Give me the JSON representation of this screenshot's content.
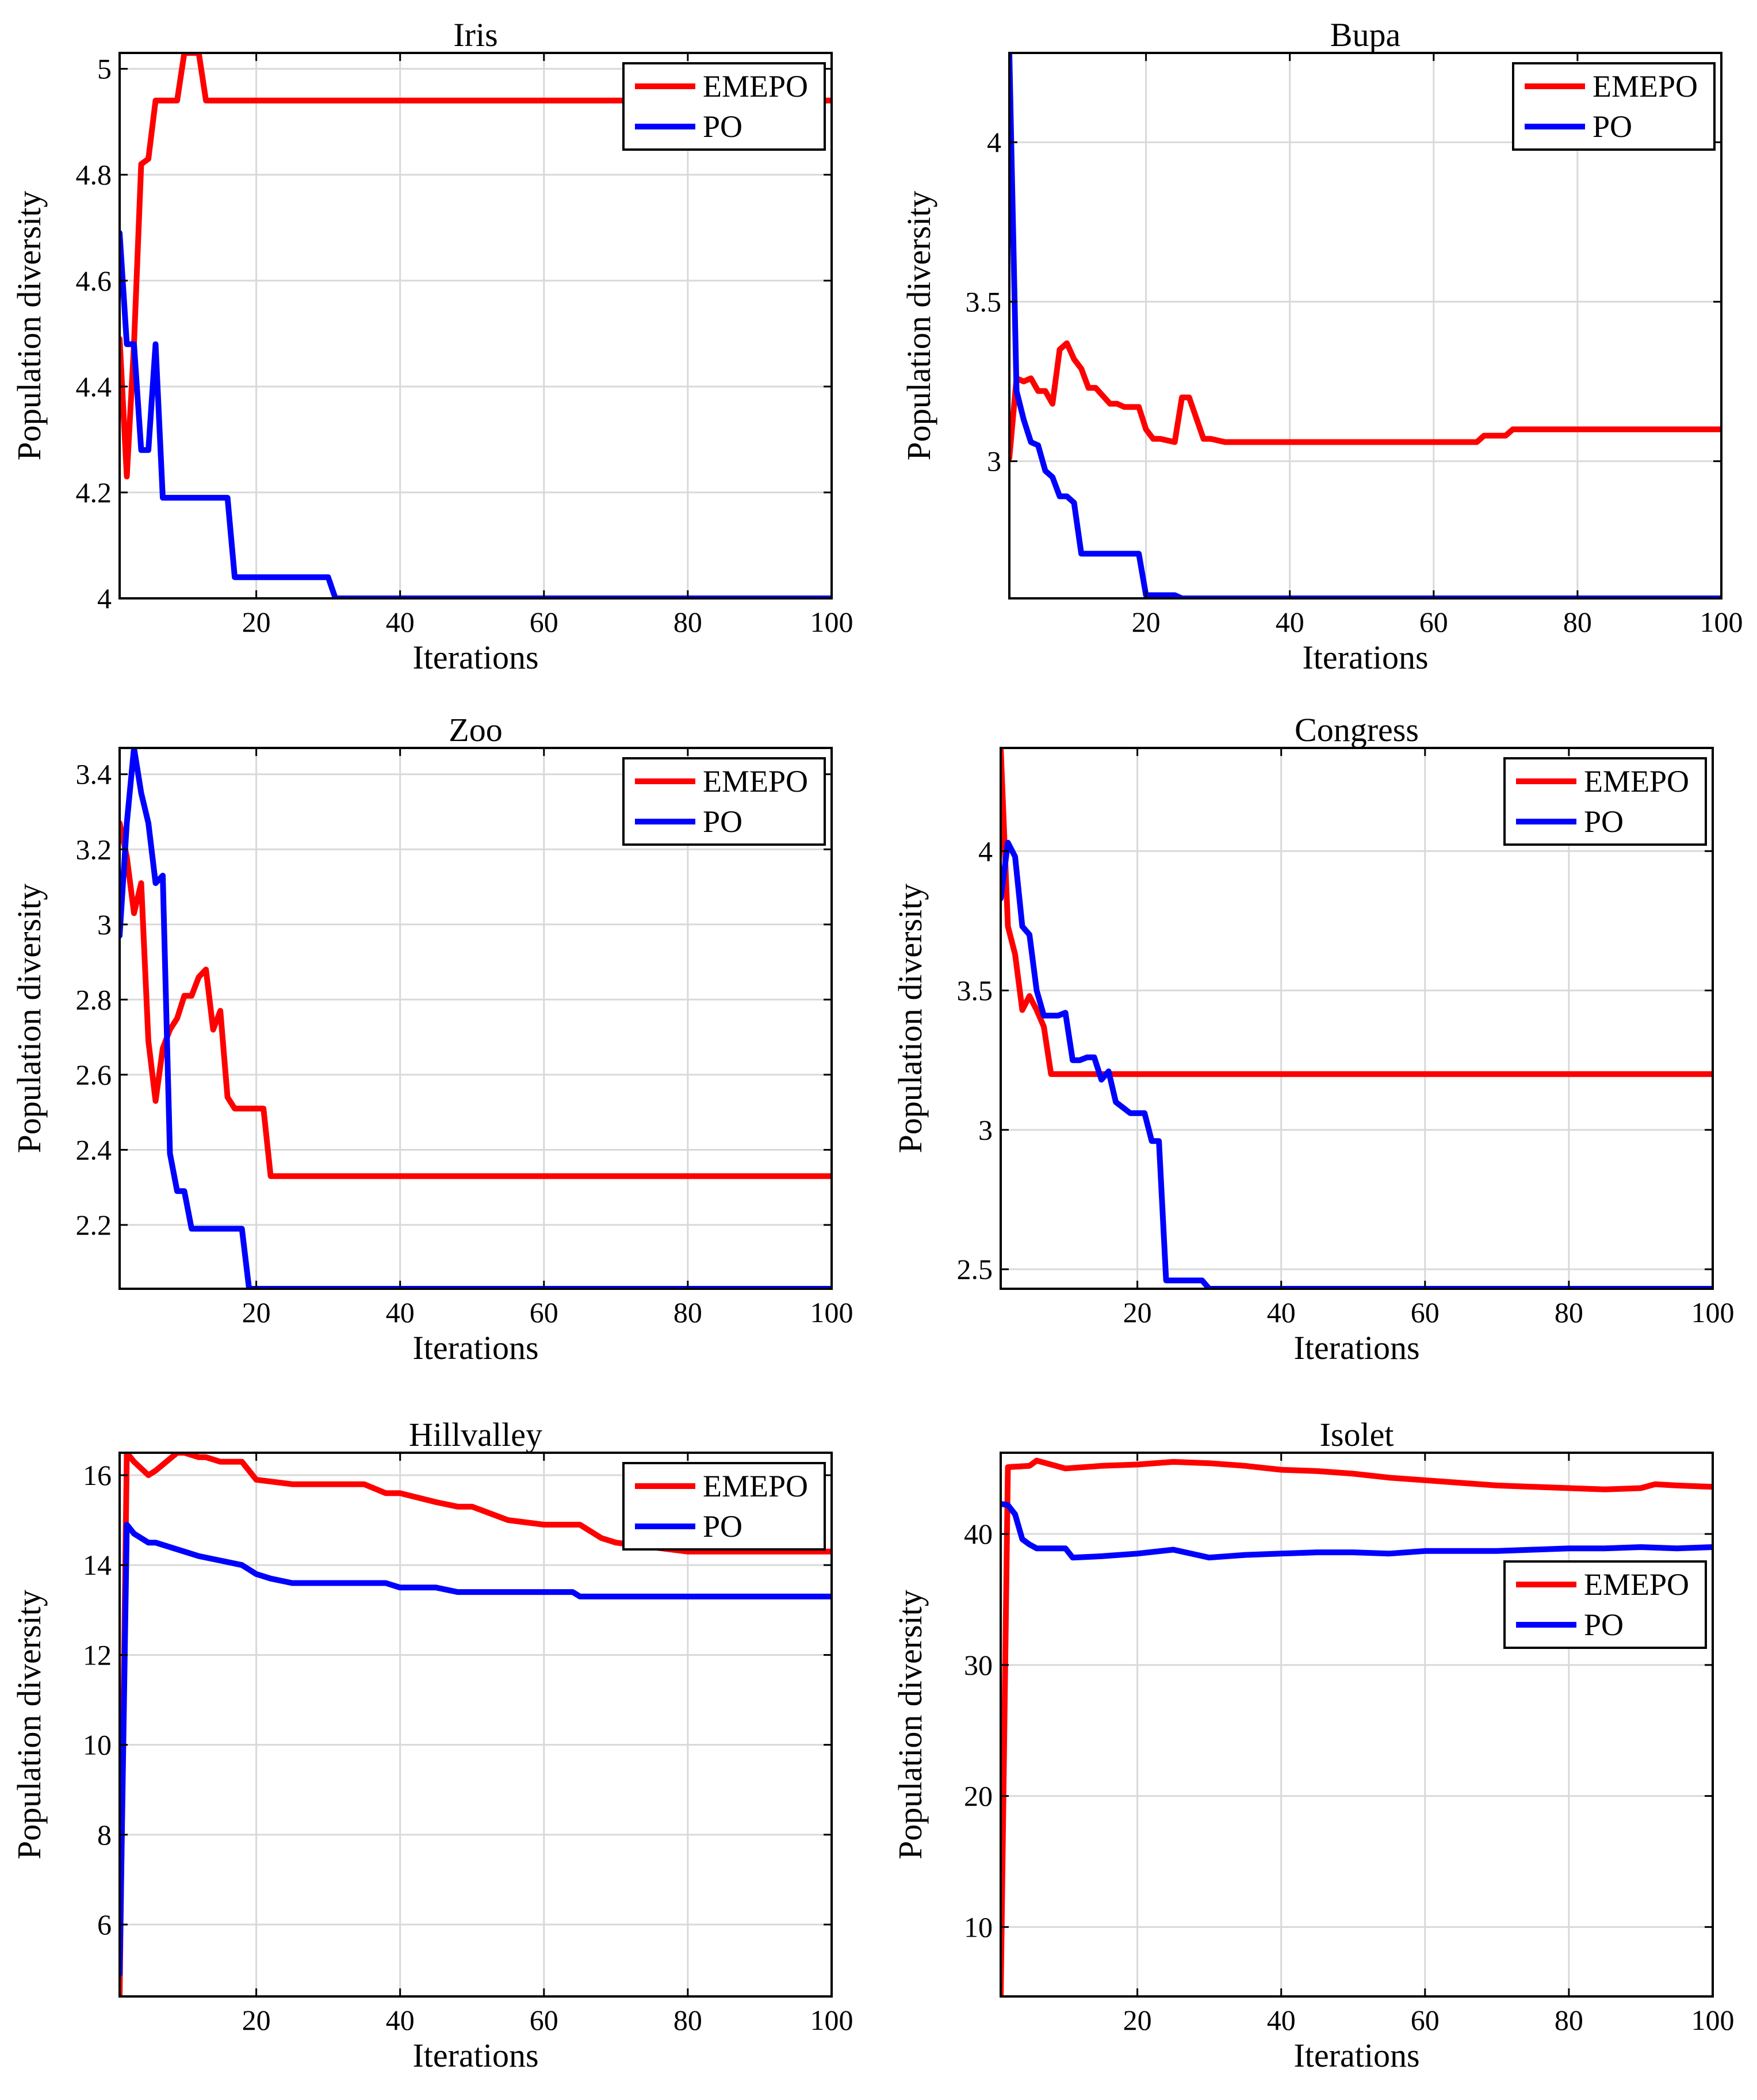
{
  "colors": {
    "EMEPO": "#ff0000",
    "PO": "#0000ff"
  },
  "chart_data": [
    {
      "type": "line",
      "title": "Iris",
      "xlabel": "Iterations",
      "ylabel": "Population diversity",
      "xlim": [
        1,
        100
      ],
      "ylim": [
        4.0,
        5.03
      ],
      "xticks": [
        20,
        40,
        60,
        80,
        100
      ],
      "xtick_labels": [
        "20",
        "40",
        "60",
        "80",
        "100"
      ],
      "yticks": [
        4,
        4.2,
        4.4,
        4.6,
        4.8,
        5
      ],
      "ytick_labels": [
        "4",
        "4.2",
        "4.4",
        "4.6",
        "4.8",
        "5"
      ],
      "legend": {
        "position": "top-right",
        "entries": [
          "EMEPO",
          "PO"
        ]
      },
      "series": [
        {
          "name": "EMEPO",
          "x": [
            1,
            2,
            3,
            4,
            5,
            6,
            7,
            8,
            9,
            10,
            11,
            12,
            13,
            100
          ],
          "values": [
            4.49,
            4.23,
            4.48,
            4.82,
            4.83,
            4.94,
            4.94,
            4.94,
            4.94,
            5.03,
            5.03,
            5.03,
            4.94,
            4.94
          ]
        },
        {
          "name": "PO",
          "x": [
            1,
            2,
            3,
            4,
            5,
            6,
            7,
            16,
            17,
            30,
            31,
            100
          ],
          "values": [
            4.69,
            4.48,
            4.48,
            4.28,
            4.28,
            4.48,
            4.19,
            4.19,
            4.04,
            4.04,
            4.0,
            4.0
          ]
        }
      ]
    },
    {
      "type": "line",
      "title": "Bupa",
      "xlabel": "Iterations",
      "ylabel": "Population diversity",
      "xlim": [
        1,
        100
      ],
      "ylim": [
        2.57,
        4.28
      ],
      "xticks": [
        20,
        40,
        60,
        80,
        100
      ],
      "xtick_labels": [
        "20",
        "40",
        "60",
        "80",
        "100"
      ],
      "yticks": [
        3,
        3.5,
        4
      ],
      "ytick_labels": [
        "3",
        "3.5",
        "4"
      ],
      "legend": {
        "position": "top-right",
        "entries": [
          "EMEPO",
          "PO"
        ]
      },
      "series": [
        {
          "name": "EMEPO",
          "x": [
            1,
            2,
            3,
            4,
            5,
            6,
            7,
            8,
            9,
            10,
            11,
            12,
            13,
            15,
            16,
            17,
            19,
            20,
            21,
            22,
            24,
            25,
            26,
            28,
            29,
            31,
            66,
            67,
            70,
            71,
            100
          ],
          "values": [
            3.01,
            3.26,
            3.25,
            3.26,
            3.22,
            3.22,
            3.18,
            3.35,
            3.37,
            3.32,
            3.29,
            3.23,
            3.23,
            3.18,
            3.18,
            3.17,
            3.17,
            3.1,
            3.07,
            3.07,
            3.06,
            3.2,
            3.2,
            3.07,
            3.07,
            3.06,
            3.06,
            3.08,
            3.08,
            3.1,
            3.1
          ]
        },
        {
          "name": "PO",
          "x": [
            1,
            2,
            3,
            4,
            5,
            6,
            7,
            8,
            9,
            10,
            11,
            12,
            19,
            20,
            24,
            25,
            100
          ],
          "values": [
            4.28,
            3.22,
            3.13,
            3.06,
            3.05,
            2.97,
            2.95,
            2.89,
            2.89,
            2.87,
            2.71,
            2.71,
            2.71,
            2.58,
            2.58,
            2.57,
            2.57
          ]
        }
      ]
    },
    {
      "type": "line",
      "title": "Zoo",
      "xlabel": "Iterations",
      "ylabel": "Population diversity",
      "xlim": [
        1,
        100
      ],
      "ylim": [
        2.03,
        3.47
      ],
      "xticks": [
        20,
        40,
        60,
        80,
        100
      ],
      "xtick_labels": [
        "20",
        "40",
        "60",
        "80",
        "100"
      ],
      "yticks": [
        2.2,
        2.4,
        2.6,
        2.8,
        3,
        3.2,
        3.4
      ],
      "ytick_labels": [
        "2.2",
        "2.4",
        "2.6",
        "2.8",
        "3",
        "3.2",
        "3.4"
      ],
      "legend": {
        "position": "top-right",
        "entries": [
          "EMEPO",
          "PO"
        ]
      },
      "series": [
        {
          "name": "EMEPO",
          "x": [
            1,
            2,
            3,
            4,
            5,
            6,
            7,
            8,
            9,
            10,
            11,
            12,
            13,
            14,
            15,
            16,
            17,
            18,
            21,
            22,
            100
          ],
          "values": [
            3.27,
            3.18,
            3.03,
            3.11,
            2.69,
            2.53,
            2.67,
            2.72,
            2.75,
            2.81,
            2.81,
            2.86,
            2.88,
            2.72,
            2.77,
            2.54,
            2.51,
            2.51,
            2.51,
            2.33,
            2.33
          ]
        },
        {
          "name": "PO",
          "x": [
            1,
            2,
            3,
            4,
            5,
            6,
            7,
            8,
            9,
            10,
            11,
            12,
            17,
            18,
            19,
            100
          ],
          "values": [
            2.97,
            3.27,
            3.47,
            3.35,
            3.27,
            3.11,
            3.13,
            2.39,
            2.29,
            2.29,
            2.19,
            2.19,
            2.19,
            2.19,
            2.03,
            2.03
          ]
        }
      ]
    },
    {
      "type": "line",
      "title": "Congress",
      "xlabel": "Iterations",
      "ylabel": "Population diversity",
      "xlim": [
        1,
        100
      ],
      "ylim": [
        2.43,
        4.37
      ],
      "xticks": [
        20,
        40,
        60,
        80,
        100
      ],
      "xtick_labels": [
        "20",
        "40",
        "60",
        "80",
        "100"
      ],
      "yticks": [
        2.5,
        3,
        3.5,
        4
      ],
      "ytick_labels": [
        "2.5",
        "3",
        "3.5",
        "4"
      ],
      "legend": {
        "position": "top-right",
        "entries": [
          "EMEPO",
          "PO"
        ]
      },
      "series": [
        {
          "name": "EMEPO",
          "x": [
            1,
            2,
            3,
            4,
            5,
            6,
            7,
            8,
            100
          ],
          "values": [
            4.37,
            3.73,
            3.63,
            3.43,
            3.48,
            3.43,
            3.37,
            3.2,
            3.2
          ]
        },
        {
          "name": "PO",
          "x": [
            1,
            2,
            3,
            4,
            5,
            6,
            7,
            8,
            9,
            10,
            11,
            12,
            13,
            14,
            15,
            16,
            17,
            18,
            19,
            20,
            21,
            22,
            23,
            24,
            25,
            26,
            29,
            30,
            31,
            100
          ],
          "values": [
            3.83,
            4.03,
            3.98,
            3.73,
            3.7,
            3.5,
            3.41,
            3.41,
            3.41,
            3.42,
            3.25,
            3.25,
            3.26,
            3.26,
            3.18,
            3.21,
            3.1,
            3.08,
            3.06,
            3.06,
            3.06,
            2.96,
            2.96,
            2.46,
            2.46,
            2.46,
            2.46,
            2.43,
            2.43,
            2.43
          ]
        }
      ]
    },
    {
      "type": "line",
      "title": "Hillvalley",
      "xlabel": "Iterations",
      "ylabel": "Population diversity",
      "xlim": [
        1,
        100
      ],
      "ylim": [
        4.4,
        16.5
      ],
      "xticks": [
        20,
        40,
        60,
        80,
        100
      ],
      "xtick_labels": [
        "20",
        "40",
        "60",
        "80",
        "100"
      ],
      "yticks": [
        6,
        8,
        10,
        12,
        14,
        16
      ],
      "ytick_labels": [
        "6",
        "8",
        "10",
        "12",
        "14",
        "16"
      ],
      "legend": {
        "position": "top-right",
        "entries": [
          "EMEPO",
          "PO"
        ]
      },
      "series": [
        {
          "name": "EMEPO",
          "x": [
            1,
            2,
            3,
            5,
            6,
            9,
            10,
            12,
            13,
            15,
            18,
            20,
            25,
            30,
            35,
            38,
            40,
            45,
            48,
            50,
            55,
            60,
            65,
            68,
            70,
            75,
            80,
            85,
            90,
            95,
            100
          ],
          "values": [
            4.4,
            16.5,
            16.3,
            16.0,
            16.1,
            16.5,
            16.5,
            16.4,
            16.4,
            16.3,
            16.3,
            15.9,
            15.8,
            15.8,
            15.8,
            15.6,
            15.6,
            15.4,
            15.3,
            15.3,
            15.0,
            14.9,
            14.9,
            14.6,
            14.5,
            14.4,
            14.3,
            14.3,
            14.3,
            14.3,
            14.3
          ]
        },
        {
          "name": "PO",
          "x": [
            1,
            2,
            3,
            5,
            6,
            10,
            12,
            15,
            18,
            20,
            22,
            25,
            30,
            35,
            38,
            40,
            45,
            48,
            50,
            55,
            60,
            64,
            65,
            70,
            75,
            80,
            85,
            90,
            95,
            100
          ],
          "values": [
            4.9,
            14.9,
            14.7,
            14.5,
            14.5,
            14.3,
            14.2,
            14.1,
            14.0,
            13.8,
            13.7,
            13.6,
            13.6,
            13.6,
            13.6,
            13.5,
            13.5,
            13.4,
            13.4,
            13.4,
            13.4,
            13.4,
            13.3,
            13.3,
            13.3,
            13.3,
            13.3,
            13.3,
            13.3,
            13.3
          ]
        }
      ]
    },
    {
      "type": "line",
      "title": "Isolet",
      "xlabel": "Iterations",
      "ylabel": "Population diversity",
      "xlim": [
        1,
        100
      ],
      "ylim": [
        4.7,
        46.2
      ],
      "xticks": [
        20,
        40,
        60,
        80,
        100
      ],
      "xtick_labels": [
        "20",
        "40",
        "60",
        "80",
        "100"
      ],
      "yticks": [
        10,
        20,
        30,
        40
      ],
      "ytick_labels": [
        "10",
        "20",
        "30",
        "40"
      ],
      "legend": {
        "position": "right",
        "entries": [
          "EMEPO",
          "PO"
        ]
      },
      "series": [
        {
          "name": "EMEPO",
          "x": [
            1,
            2,
            5,
            6,
            10,
            15,
            20,
            25,
            30,
            35,
            40,
            45,
            50,
            55,
            60,
            65,
            70,
            75,
            80,
            85,
            90,
            92,
            95,
            100
          ],
          "values": [
            4.7,
            45.1,
            45.2,
            45.6,
            45.0,
            45.2,
            45.3,
            45.5,
            45.4,
            45.2,
            44.9,
            44.8,
            44.6,
            44.3,
            44.1,
            43.9,
            43.7,
            43.6,
            43.5,
            43.4,
            43.5,
            43.8,
            43.7,
            43.6
          ]
        },
        {
          "name": "PO",
          "x": [
            1,
            2,
            3,
            4,
            5,
            6,
            10,
            11,
            15,
            20,
            25,
            30,
            35,
            40,
            45,
            50,
            55,
            60,
            65,
            70,
            75,
            80,
            85,
            90,
            95,
            100
          ],
          "values": [
            42.3,
            42.2,
            41.5,
            39.6,
            39.2,
            38.9,
            38.9,
            38.2,
            38.3,
            38.5,
            38.8,
            38.2,
            38.4,
            38.5,
            38.6,
            38.6,
            38.5,
            38.7,
            38.7,
            38.7,
            38.8,
            38.9,
            38.9,
            39.0,
            38.9,
            39.0
          ]
        }
      ]
    }
  ]
}
